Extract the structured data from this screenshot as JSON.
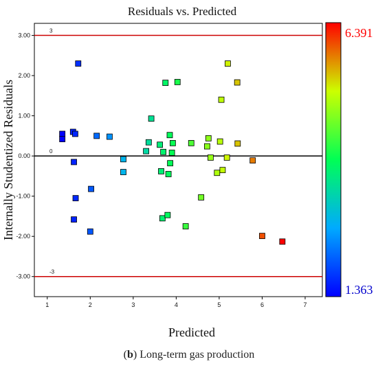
{
  "chart_data": {
    "type": "scatter",
    "title": "Residuals vs. Predicted",
    "xlabel": "Predicted",
    "ylabel": "Internally Studentized  Residuals",
    "xlim": [
      0.7,
      7.4
    ],
    "ylim": [
      -3.5,
      3.3
    ],
    "xticks": [
      "1",
      "2",
      "3",
      "4",
      "5",
      "6",
      "7"
    ],
    "yticks": [
      "3.00",
      "2.00",
      "1.00",
      "0.00",
      "-1.00",
      "-2.00",
      "-3.00"
    ],
    "ytick_values": [
      3,
      2,
      1,
      0,
      -1,
      -2,
      -3
    ],
    "xtick_values": [
      1,
      2,
      3,
      4,
      5,
      6,
      7
    ],
    "limit_lines": [
      {
        "value": 3,
        "label": "3",
        "color": "#cc0000"
      },
      {
        "value": -3,
        "label": "-3",
        "color": "#cc0000"
      }
    ],
    "zero_line": {
      "value": 0,
      "label": "0"
    },
    "colorbar": {
      "max_label": "6.391",
      "min_label": "1.363",
      "max": 6.391,
      "min": 1.363,
      "max_color": "#ff0000",
      "min_color": "#0000ff"
    },
    "points": [
      {
        "x": 1.35,
        "y": 0.55
      },
      {
        "x": 1.35,
        "y": 0.42
      },
      {
        "x": 1.6,
        "y": 0.6
      },
      {
        "x": 1.65,
        "y": 0.55
      },
      {
        "x": 1.72,
        "y": 2.3
      },
      {
        "x": 1.62,
        "y": -0.15
      },
      {
        "x": 1.66,
        "y": -1.05
      },
      {
        "x": 1.62,
        "y": -1.58
      },
      {
        "x": 2.02,
        "y": -0.82
      },
      {
        "x": 2.0,
        "y": -1.88
      },
      {
        "x": 2.15,
        "y": 0.5
      },
      {
        "x": 2.45,
        "y": 0.48
      },
      {
        "x": 2.77,
        "y": -0.08
      },
      {
        "x": 2.77,
        "y": -0.4
      },
      {
        "x": 3.3,
        "y": 0.12
      },
      {
        "x": 3.36,
        "y": 0.34
      },
      {
        "x": 3.42,
        "y": 0.93
      },
      {
        "x": 3.62,
        "y": 0.28
      },
      {
        "x": 3.65,
        "y": -0.38
      },
      {
        "x": 3.68,
        "y": -1.55
      },
      {
        "x": 3.7,
        "y": 0.1
      },
      {
        "x": 3.75,
        "y": 1.82
      },
      {
        "x": 3.8,
        "y": -1.47
      },
      {
        "x": 3.82,
        "y": -0.45
      },
      {
        "x": 3.85,
        "y": 0.52
      },
      {
        "x": 3.86,
        "y": -0.18
      },
      {
        "x": 3.9,
        "y": 0.08
      },
      {
        "x": 3.92,
        "y": 0.32
      },
      {
        "x": 4.03,
        "y": 1.84
      },
      {
        "x": 4.22,
        "y": -1.75
      },
      {
        "x": 4.35,
        "y": 0.32
      },
      {
        "x": 4.58,
        "y": -1.03
      },
      {
        "x": 4.72,
        "y": 0.24
      },
      {
        "x": 4.75,
        "y": 0.44
      },
      {
        "x": 4.8,
        "y": -0.04
      },
      {
        "x": 4.95,
        "y": -0.42
      },
      {
        "x": 5.02,
        "y": 0.36
      },
      {
        "x": 5.05,
        "y": 1.4
      },
      {
        "x": 5.08,
        "y": -0.35
      },
      {
        "x": 5.18,
        "y": -0.04
      },
      {
        "x": 5.2,
        "y": 2.3
      },
      {
        "x": 5.42,
        "y": 1.83
      },
      {
        "x": 5.43,
        "y": 0.31
      },
      {
        "x": 5.78,
        "y": -0.11
      },
      {
        "x": 6.0,
        "y": -1.99
      },
      {
        "x": 6.47,
        "y": -2.13
      }
    ]
  }
}
